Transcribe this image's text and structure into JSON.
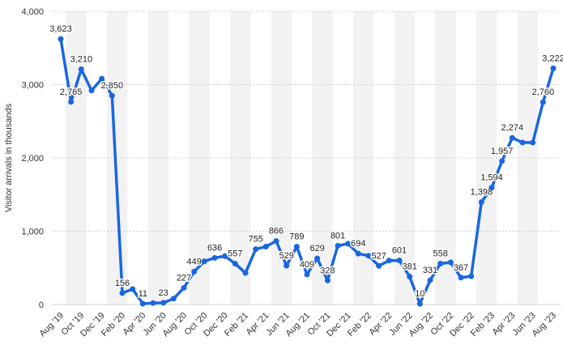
{
  "chart_data": {
    "type": "line",
    "y_label": "Visitor arrivals in thousands",
    "categories": [
      "Aug '19",
      null,
      "Oct '19",
      null,
      "Dec '19",
      null,
      "Feb '20",
      null,
      "Apr '20",
      null,
      "Jun '20",
      null,
      "Aug '20",
      null,
      "Oct '20",
      null,
      "Dec '20",
      null,
      "Feb '21",
      null,
      "Apr '21",
      null,
      "Jun '21",
      null,
      "Aug '21",
      null,
      "Oct '21",
      null,
      "Dec '21",
      null,
      "Feb '22",
      null,
      "Apr '22",
      null,
      "Jun '22",
      null,
      "Aug '22",
      null,
      "Oct '22",
      null,
      "Dec '22",
      null,
      "Feb '23",
      null,
      "Apr '23",
      null,
      "Jun '23",
      null,
      "Aug '23"
    ],
    "series": [
      {
        "color": "#1a66e0",
        "values": [
          3623,
          2765,
          3210,
          2920,
          3080,
          2850,
          156,
          210,
          11,
          20,
          23,
          80,
          227,
          449,
          590,
          636,
          660,
          557,
          430,
          755,
          790,
          866,
          529,
          789,
          409,
          629,
          328,
          801,
          830,
          694,
          665,
          527,
          600,
          601,
          381,
          10,
          331,
          558,
          575,
          367,
          385,
          1398,
          1594,
          1957,
          2274,
          2210,
          2210,
          2760,
          3222
        ],
        "value_labels": [
          "3,623",
          "2,765",
          "3,210",
          null,
          null,
          "2,850",
          "156",
          null,
          "11",
          null,
          "23",
          null,
          "227",
          "449",
          null,
          "636",
          null,
          "557",
          null,
          "755",
          null,
          "866",
          "529",
          "789",
          "409",
          "629",
          "328",
          "801",
          null,
          "694",
          null,
          "527",
          null,
          "601",
          "381",
          "10",
          "331",
          "558",
          null,
          "367",
          null,
          "1,398",
          "1,594",
          "1,957",
          "2,274",
          null,
          null,
          "2,760",
          "3,222"
        ]
      }
    ],
    "ylim": [
      0,
      4000
    ],
    "yticks": [
      0,
      {
        "value": 1000,
        "label": "1,000"
      },
      {
        "value": 2000,
        "label": "2,000"
      },
      {
        "value": 3000,
        "label": "3,000"
      },
      {
        "value": 4000,
        "label": "4,000"
      }
    ],
    "grid": true
  }
}
